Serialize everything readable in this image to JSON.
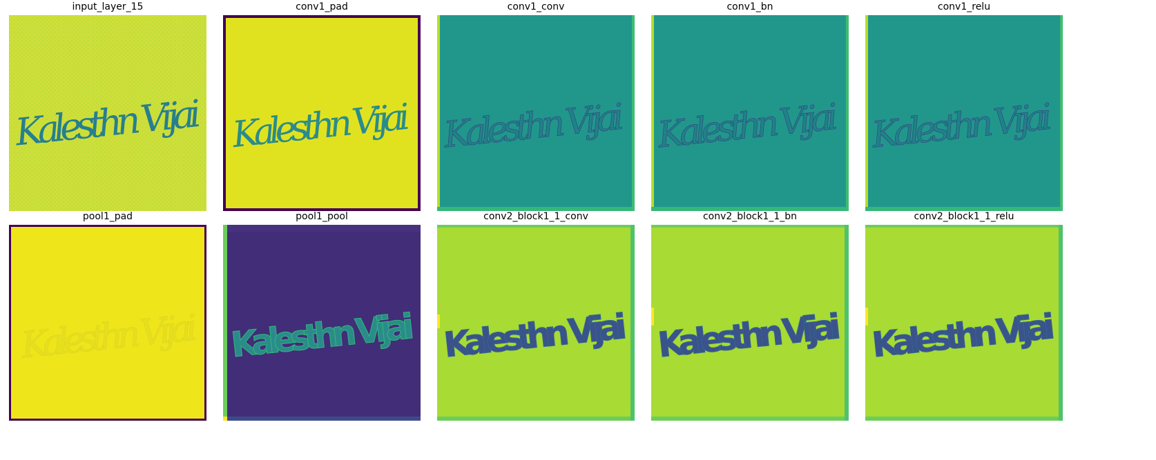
{
  "figure": {
    "panels": [
      {
        "title": "input_layer_15",
        "style": "signature-input"
      },
      {
        "title": "conv1_pad",
        "style": "signature-padded"
      },
      {
        "title": "conv1_conv",
        "style": "edge-teal"
      },
      {
        "title": "conv1_bn",
        "style": "edge-teal"
      },
      {
        "title": "conv1_relu",
        "style": "edge-teal"
      },
      {
        "title": "pool1_pad",
        "style": "flat-yellow-padded"
      },
      {
        "title": "pool1_pool",
        "style": "dark-blocky"
      },
      {
        "title": "conv2_block1_1_conv",
        "style": "blocky-light"
      },
      {
        "title": "conv2_block1_1_bn",
        "style": "blocky-light"
      },
      {
        "title": "conv2_block1_1_relu",
        "style": "blocky-light"
      }
    ],
    "handwriting_text": "Kalesthn Vijai",
    "colormap": {
      "dark": "#440154",
      "navy": "#3b2f7a",
      "blue": "#31688e",
      "teal": "#21918c",
      "green": "#35b779",
      "lime": "#b5de2b",
      "yellow": "#e8e419"
    }
  }
}
